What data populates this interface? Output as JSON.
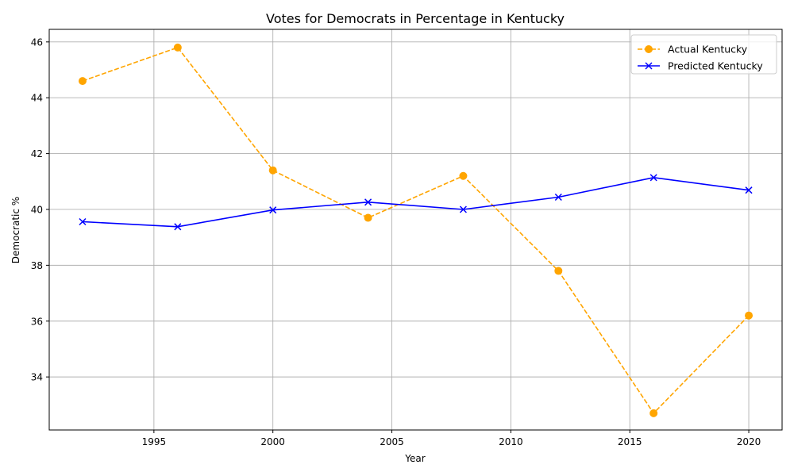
{
  "chart_data": {
    "type": "line",
    "title": "Votes for Democrats in Percentage in Kentucky",
    "xlabel": "Year",
    "ylabel": "Democratic %",
    "xlim": [
      1990.6,
      2021.4
    ],
    "ylim": [
      32.1,
      46.45
    ],
    "xticks": [
      1995,
      2000,
      2005,
      2010,
      2015,
      2020
    ],
    "yticks": [
      34,
      36,
      38,
      40,
      42,
      44,
      46
    ],
    "grid": true,
    "legend_position": "top-right",
    "x": [
      1992,
      1996,
      2000,
      2004,
      2008,
      2012,
      2016,
      2020
    ],
    "series": [
      {
        "name": "Actual Kentucky",
        "color": "#ffa500",
        "line_style": "dashed",
        "marker": "circle",
        "values": [
          44.6,
          45.8,
          41.4,
          39.7,
          41.2,
          37.8,
          32.7,
          36.2
        ]
      },
      {
        "name": "Predicted Kentucky",
        "color": "#0000ff",
        "line_style": "solid",
        "marker": "x",
        "values": [
          39.56,
          39.38,
          39.98,
          40.26,
          40.0,
          40.44,
          41.14,
          40.69
        ]
      }
    ]
  }
}
